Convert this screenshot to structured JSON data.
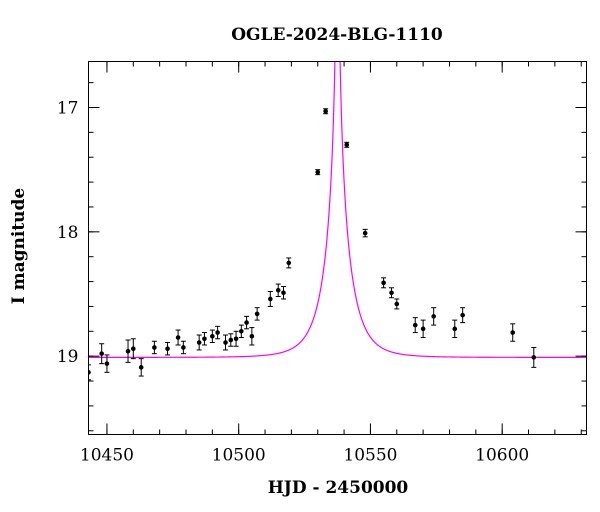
{
  "chart_data": {
    "type": "scatter",
    "title": "OGLE-2024-BLG-1110",
    "xlabel": "HJD - 2450000",
    "ylabel": "I magnitude",
    "xlim": [
      10443,
      10632
    ],
    "ylim": [
      19.63,
      16.63
    ],
    "y_inverted": true,
    "x_ticks": [
      10450,
      10500,
      10550,
      10600
    ],
    "x_tick_labels": [
      "10450",
      "10500",
      "10550",
      "10600"
    ],
    "x_minor_step": 10,
    "y_ticks": [
      17,
      18,
      19
    ],
    "y_tick_labels": [
      "17",
      "18",
      "19"
    ],
    "y_minor_step": 0.2,
    "grid": false,
    "colors": {
      "data": "#000000",
      "model": "#ff00ff"
    },
    "series": [
      {
        "type": "errorbar",
        "x": [
          10443,
          10448,
          10450,
          10458,
          10460,
          10463,
          10468,
          10473,
          10477,
          10479,
          10485,
          10487,
          10490,
          10492,
          10495,
          10497,
          10499,
          10501,
          10503,
          10505,
          10507,
          10512,
          10515,
          10517,
          10519,
          10530,
          10533,
          10541,
          10548,
          10555,
          10558,
          10560,
          10567,
          10570,
          10574,
          10582,
          10585,
          10604,
          10612
        ],
        "y": [
          19.13,
          18.98,
          19.06,
          18.96,
          18.94,
          19.09,
          18.93,
          18.94,
          18.85,
          18.93,
          18.89,
          18.86,
          18.84,
          18.81,
          18.89,
          18.87,
          18.86,
          18.8,
          18.73,
          18.84,
          18.66,
          18.54,
          18.47,
          18.49,
          18.25,
          17.52,
          17.03,
          17.3,
          18.01,
          18.41,
          18.49,
          18.58,
          18.75,
          18.78,
          18.68,
          18.78,
          18.67,
          18.81,
          19.01
        ],
        "err": [
          0.06,
          0.08,
          0.07,
          0.09,
          0.08,
          0.07,
          0.05,
          0.05,
          0.06,
          0.05,
          0.06,
          0.05,
          0.05,
          0.05,
          0.06,
          0.05,
          0.06,
          0.05,
          0.05,
          0.07,
          0.05,
          0.06,
          0.05,
          0.05,
          0.04,
          0.02,
          0.02,
          0.02,
          0.03,
          0.04,
          0.04,
          0.04,
          0.06,
          0.07,
          0.07,
          0.07,
          0.06,
          0.07,
          0.08
        ]
      },
      {
        "type": "line",
        "model": "microlensing",
        "t0": 10537.5,
        "tE": 9,
        "u0": 0.025,
        "baseline": 19.01,
        "peak": 16.6
      }
    ]
  }
}
